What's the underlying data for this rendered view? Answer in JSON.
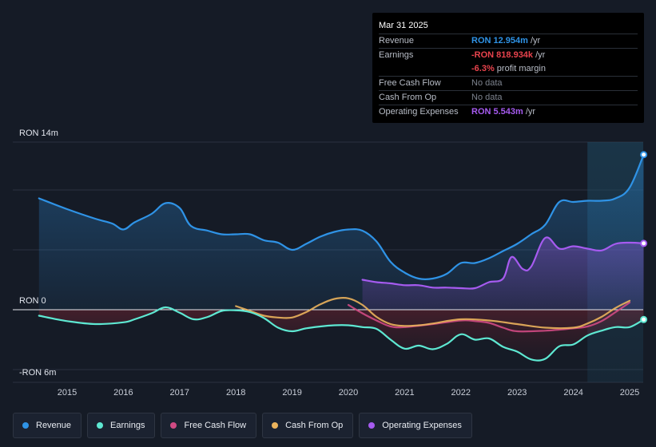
{
  "tooltip": {
    "date": "Mar 31 2025",
    "rows": {
      "revenue": {
        "label": "Revenue",
        "value": "RON 12.954m",
        "unit": " /yr"
      },
      "earnings": {
        "label": "Earnings",
        "value": "-RON 818.934k",
        "unit": " /yr"
      },
      "margin": {
        "value": "-6.3%",
        "unit": " profit margin"
      },
      "fcf": {
        "label": "Free Cash Flow",
        "value": "No data"
      },
      "cfo": {
        "label": "Cash From Op",
        "value": "No data"
      },
      "opex": {
        "label": "Operating Expenses",
        "value": "RON 5.543m",
        "unit": " /yr"
      }
    }
  },
  "legend": {
    "revenue": "Revenue",
    "earnings": "Earnings",
    "fcf": "Free Cash Flow",
    "cfo": "Cash From Op",
    "opex": "Operating Expenses"
  },
  "chart_data": {
    "type": "area",
    "title": "",
    "xlabel": "",
    "ylabel": "",
    "y_labels": {
      "top": "RON 14m",
      "zero": "RON 0",
      "bottom": "-RON 6m"
    },
    "ylim": [
      -6,
      14
    ],
    "xlim": [
      2014.3,
      2025.25
    ],
    "x_ticks": [
      2015,
      2016,
      2017,
      2018,
      2019,
      2020,
      2021,
      2022,
      2023,
      2024,
      2025
    ],
    "x_tick_labels": [
      "2015",
      "2016",
      "2017",
      "2018",
      "2019",
      "2020",
      "2021",
      "2022",
      "2023",
      "2024",
      "2025"
    ],
    "highlight_from": 2024.25,
    "colors": {
      "revenue": "#2f93e6",
      "earnings": "#5ee8d2",
      "fcf": "#d04a83",
      "cfo": "#ebb35c",
      "opex": "#a65bf0",
      "loss_fill": "#8a1f2b"
    },
    "series": [
      {
        "name": "Revenue",
        "key": "revenue",
        "x": [
          2014.5,
          2015.0,
          2015.5,
          2015.8,
          2016.0,
          2016.2,
          2016.5,
          2016.75,
          2017.0,
          2017.2,
          2017.5,
          2017.75,
          2018.0,
          2018.25,
          2018.5,
          2018.75,
          2019.0,
          2019.25,
          2019.5,
          2019.75,
          2020.0,
          2020.25,
          2020.5,
          2020.75,
          2021.0,
          2021.25,
          2021.5,
          2021.75,
          2022.0,
          2022.25,
          2022.5,
          2022.75,
          2023.0,
          2023.25,
          2023.5,
          2023.75,
          2024.0,
          2024.25,
          2024.5,
          2024.75,
          2025.0,
          2025.25
        ],
        "values": [
          9.3,
          8.4,
          7.6,
          7.2,
          6.7,
          7.3,
          8.0,
          8.9,
          8.5,
          7.0,
          6.6,
          6.3,
          6.3,
          6.3,
          5.8,
          5.6,
          5.0,
          5.5,
          6.1,
          6.5,
          6.7,
          6.6,
          5.7,
          4.0,
          3.1,
          2.6,
          2.6,
          3.0,
          3.9,
          3.9,
          4.3,
          4.9,
          5.5,
          6.3,
          7.1,
          9.0,
          9.0,
          9.1,
          9.1,
          9.3,
          10.2,
          12.95
        ]
      },
      {
        "name": "Earnings",
        "key": "earnings",
        "x": [
          2014.5,
          2015.0,
          2015.5,
          2016.0,
          2016.2,
          2016.5,
          2016.75,
          2017.0,
          2017.25,
          2017.5,
          2017.75,
          2018.0,
          2018.25,
          2018.5,
          2018.75,
          2019.0,
          2019.25,
          2019.5,
          2019.75,
          2020.0,
          2020.25,
          2020.5,
          2020.75,
          2021.0,
          2021.25,
          2021.5,
          2021.75,
          2022.0,
          2022.25,
          2022.5,
          2022.75,
          2023.0,
          2023.25,
          2023.5,
          2023.75,
          2024.0,
          2024.25,
          2024.5,
          2024.75,
          2025.0,
          2025.25
        ],
        "values": [
          -0.5,
          -0.95,
          -1.2,
          -1.05,
          -0.8,
          -0.3,
          0.2,
          -0.25,
          -0.8,
          -0.6,
          -0.1,
          -0.05,
          -0.2,
          -0.7,
          -1.5,
          -1.8,
          -1.55,
          -1.4,
          -1.3,
          -1.3,
          -1.45,
          -1.6,
          -2.5,
          -3.25,
          -3.0,
          -3.3,
          -2.85,
          -2.05,
          -2.5,
          -2.4,
          -3.1,
          -3.5,
          -4.15,
          -4.1,
          -3.05,
          -2.9,
          -2.15,
          -1.75,
          -1.45,
          -1.45,
          -0.82
        ]
      },
      {
        "name": "Free Cash Flow",
        "key": "fcf",
        "x": [
          2020.0,
          2020.25,
          2020.5,
          2020.75,
          2021.0,
          2021.5,
          2022.0,
          2022.25,
          2022.5,
          2022.75,
          2023.0,
          2023.5,
          2024.0,
          2024.25,
          2024.5,
          2024.75,
          2025.0
        ],
        "values": [
          0.4,
          -0.3,
          -0.9,
          -1.4,
          -1.45,
          -1.2,
          -0.9,
          -0.95,
          -1.1,
          -1.5,
          -1.8,
          -1.75,
          -1.55,
          -1.4,
          -0.95,
          -0.2,
          0.6
        ]
      },
      {
        "name": "Cash From Op",
        "key": "cfo",
        "x": [
          2018.0,
          2018.25,
          2018.5,
          2018.75,
          2019.0,
          2019.25,
          2019.5,
          2019.75,
          2020.0,
          2020.25,
          2020.5,
          2020.75,
          2021.0,
          2021.25,
          2021.5,
          2022.0,
          2022.5,
          2023.0,
          2023.5,
          2024.0,
          2024.25,
          2024.5,
          2024.75,
          2025.0
        ],
        "values": [
          0.3,
          -0.1,
          -0.5,
          -0.65,
          -0.65,
          -0.2,
          0.45,
          0.9,
          0.95,
          0.4,
          -0.6,
          -1.2,
          -1.35,
          -1.3,
          -1.15,
          -0.8,
          -0.9,
          -1.2,
          -1.5,
          -1.5,
          -1.15,
          -0.6,
          0.15,
          0.75
        ]
      },
      {
        "name": "Operating Expenses",
        "key": "opex",
        "x": [
          2020.25,
          2020.5,
          2020.75,
          2021.0,
          2021.25,
          2021.5,
          2021.75,
          2022.0,
          2022.25,
          2022.5,
          2022.75,
          2022.9,
          2023.1,
          2023.25,
          2023.5,
          2023.75,
          2024.0,
          2024.25,
          2024.5,
          2024.75,
          2025.0,
          2025.25
        ],
        "values": [
          2.5,
          2.3,
          2.2,
          2.05,
          2.05,
          1.85,
          1.85,
          1.8,
          1.8,
          2.3,
          2.6,
          4.4,
          3.4,
          3.6,
          6.0,
          5.1,
          5.3,
          5.1,
          4.95,
          5.5,
          5.6,
          5.54
        ]
      }
    ]
  }
}
